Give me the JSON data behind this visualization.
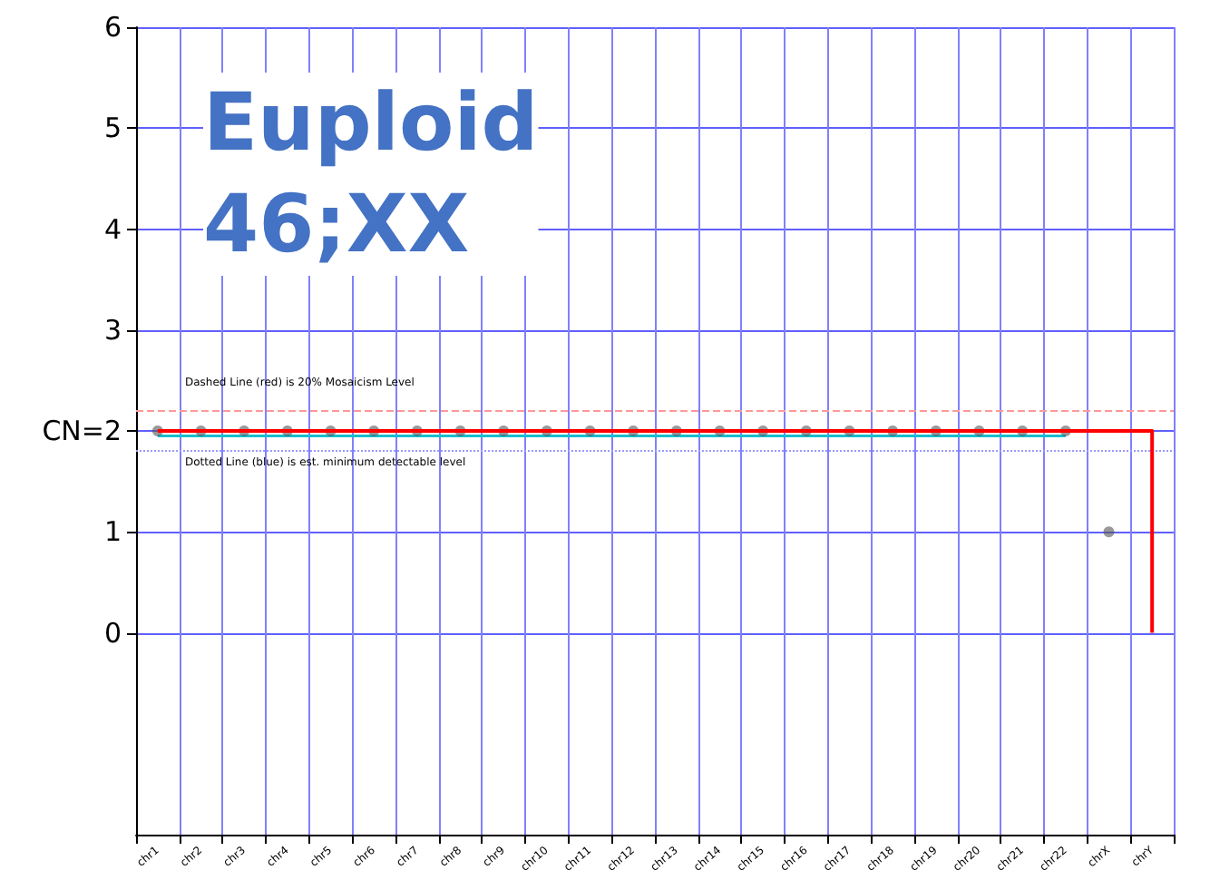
{
  "chart_data": {
    "type": "line",
    "categories": [
      "chr1",
      "chr2",
      "chr3",
      "chr4",
      "chr5",
      "chr6",
      "chr7",
      "chr8",
      "chr9",
      "chr10",
      "chr11",
      "chr12",
      "chr13",
      "chr14",
      "chr15",
      "chr16",
      "chr17",
      "chr18",
      "chr19",
      "chr20",
      "chr21",
      "chr22",
      "chrX",
      "chrY"
    ],
    "ylim": [
      -2,
      6
    ],
    "yticks": [
      0,
      1,
      {
        "value": 2,
        "label": "CN=2"
      },
      3,
      4,
      5,
      6
    ],
    "grid": true,
    "series": [
      {
        "type": "scatter",
        "color": "#555555",
        "values": [
          2,
          2,
          2,
          2,
          2,
          2,
          2,
          2,
          2,
          2,
          2,
          2,
          2,
          2,
          2,
          2,
          2,
          2,
          2,
          2,
          2,
          2,
          1,
          null
        ]
      },
      {
        "color": "#17becf",
        "values": [
          1.95,
          1.95,
          1.95,
          1.95,
          1.95,
          1.95,
          1.95,
          1.95,
          1.95,
          1.95,
          1.95,
          1.95,
          1.95,
          1.95,
          1.95,
          1.95,
          1.95,
          1.95,
          1.95,
          1.95,
          1.95,
          1.95,
          null,
          null
        ]
      },
      {
        "type": "step",
        "color": "#ff0000",
        "values": [
          2,
          2,
          2,
          2,
          2,
          2,
          2,
          2,
          2,
          2,
          2,
          2,
          2,
          2,
          2,
          2,
          2,
          2,
          2,
          2,
          2,
          2,
          2,
          0
        ]
      }
    ],
    "ref_lines": [
      {
        "axis": "y",
        "value": 2.2,
        "color": "#ff9999",
        "line_style": "dashed"
      },
      {
        "axis": "y",
        "value": 1.8,
        "color": "#9999ff",
        "line_style": "dotted"
      }
    ],
    "annotations": [
      "Euploid\n46;XX",
      "Dashed Line (red) is 20% Mosaicism Level",
      "Dotted Line (blue) is est. minimum detectable level"
    ]
  }
}
